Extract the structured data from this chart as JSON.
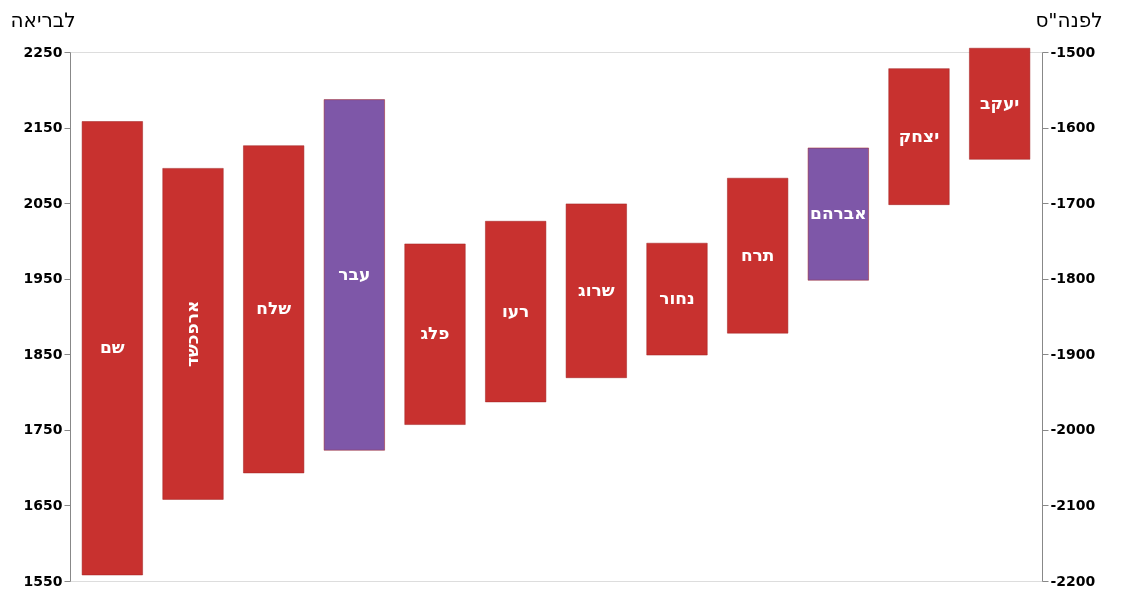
{
  "chart_data": {
    "type": "bar",
    "ylabel": "לבריאה",
    "y2label": "לפנה\"ס",
    "categories": [
      "שם",
      "ארפכשד",
      "שלח",
      "עבר",
      "פלג",
      "רעו",
      "שרוג",
      "נחור",
      "תרח",
      "אברהם",
      "יצחק",
      "יעקב"
    ],
    "base": [
      1558,
      1658,
      1693,
      1723,
      1757,
      1787,
      1819,
      1849,
      1878,
      1948,
      2048,
      2108
    ],
    "values": [
      600,
      438,
      433,
      464,
      239,
      239,
      230,
      148,
      205,
      175,
      180,
      147
    ],
    "colors": [
      "#c8312f",
      "#c8312f",
      "#c8312f",
      "#7e57a8",
      "#c8312f",
      "#c8312f",
      "#c8312f",
      "#c8312f",
      "#c8312f",
      "#7e57a8",
      "#c8312f",
      "#c8312f"
    ],
    "ylim": [
      1550,
      2250
    ],
    "yticks": [
      1550,
      1650,
      1750,
      1850,
      1950,
      2050,
      2150,
      2250
    ],
    "y2lim": [
      -2200,
      -1500
    ],
    "y2ticks": [
      -2200,
      -2100,
      -2000,
      -1900,
      -1800,
      -1700,
      -1600,
      -1500
    ],
    "tick_labels": "y",
    "grid": false
  }
}
